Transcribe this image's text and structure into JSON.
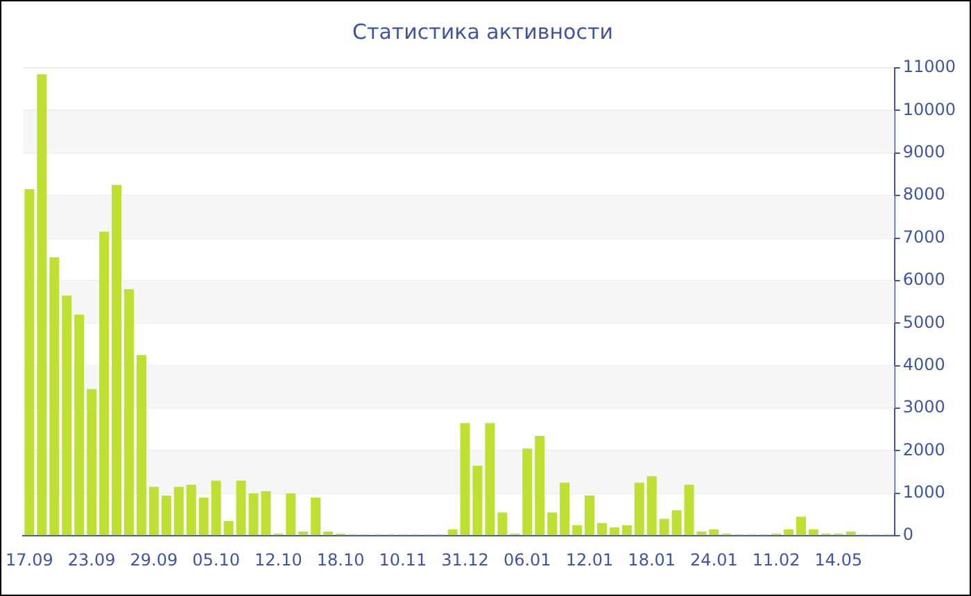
{
  "chart_data": {
    "type": "bar",
    "title": "Статистика активности",
    "categories": [
      "17.09",
      null,
      null,
      null,
      null,
      "23.09",
      null,
      null,
      null,
      null,
      "29.09",
      null,
      null,
      null,
      null,
      "05.10",
      null,
      null,
      null,
      null,
      "12.10",
      null,
      null,
      null,
      null,
      "18.10",
      null,
      null,
      null,
      null,
      "10.11",
      null,
      null,
      null,
      null,
      "31.12",
      null,
      null,
      null,
      null,
      "06.01",
      null,
      null,
      null,
      null,
      "12.01",
      null,
      null,
      null,
      null,
      "18.01",
      null,
      null,
      null,
      null,
      "24.01",
      null,
      null,
      null,
      null,
      "11.02",
      null,
      null,
      null,
      null,
      "14.05",
      null,
      null,
      null,
      null
    ],
    "values": [
      8150,
      10850,
      6550,
      5650,
      5200,
      3450,
      7150,
      8250,
      5800,
      4250,
      1150,
      950,
      1150,
      1200,
      900,
      1300,
      350,
      1300,
      1000,
      1050,
      50,
      1000,
      100,
      900,
      100,
      50,
      30,
      30,
      30,
      30,
      30,
      30,
      30,
      30,
      150,
      2650,
      1650,
      2650,
      550,
      50,
      2050,
      2350,
      550,
      1250,
      250,
      950,
      300,
      200,
      250,
      1250,
      1400,
      400,
      600,
      1200,
      100,
      150,
      50,
      30,
      30,
      30,
      50,
      150,
      450,
      150,
      50,
      50,
      100,
      30,
      30,
      30
    ],
    "color": "#bde033",
    "ylim": [
      0,
      11000
    ],
    "yticks": [
      0,
      1000,
      2000,
      3000,
      4000,
      5000,
      6000,
      7000,
      8000,
      9000,
      10000,
      11000
    ],
    "grid": "y"
  }
}
